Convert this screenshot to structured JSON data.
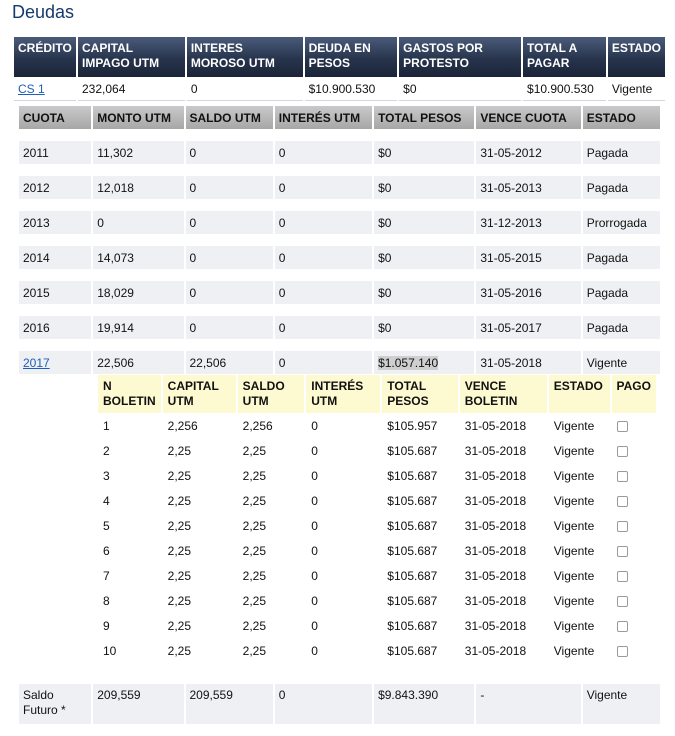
{
  "page": {
    "title": "Deudas"
  },
  "credit_table": {
    "headers": [
      "CRÉDITO",
      "CAPITAL IMPAGO UTM",
      "INTERES MOROSO UTM",
      "DEUDA EN PESOS",
      "GASTOS POR PROTESTO",
      "TOTAL A PAGAR",
      "ESTADO"
    ],
    "row": [
      "CS 1",
      "232,064",
      "0",
      "$10.900.530",
      "$0",
      "$10.900.530",
      "Vigente"
    ]
  },
  "cuotas_table": {
    "headers": [
      "CUOTA",
      "MONTO UTM",
      "SALDO UTM",
      "INTERÉS UTM",
      "TOTAL PESOS",
      "VENCE CUOTA",
      "ESTADO"
    ],
    "rows": [
      [
        "2011",
        "11,302",
        "0",
        "0",
        "$0",
        "31-05-2012",
        "Pagada"
      ],
      [
        "2012",
        "12,018",
        "0",
        "0",
        "$0",
        "31-05-2013",
        "Pagada"
      ],
      [
        "2013",
        "0",
        "0",
        "0",
        "$0",
        "31-12-2013",
        "Prorrogada"
      ],
      [
        "2014",
        "14,073",
        "0",
        "0",
        "$0",
        "31-05-2015",
        "Pagada"
      ],
      [
        "2015",
        "18,029",
        "0",
        "0",
        "$0",
        "31-05-2016",
        "Pagada"
      ],
      [
        "2016",
        "19,914",
        "0",
        "0",
        "$0",
        "31-05-2017",
        "Pagada"
      ],
      [
        "2017",
        "22,506",
        "22,506",
        "0",
        "$1.057.140",
        "31-05-2018",
        "Vigente"
      ]
    ]
  },
  "boletines_table": {
    "headers": [
      "N BOLETIN",
      "CAPITAL UTM",
      "SALDO UTM",
      "INTERÉS UTM",
      "TOTAL PESOS",
      "VENCE BOLETIN",
      "ESTADO",
      "PAGO"
    ],
    "rows": [
      [
        "1",
        "2,256",
        "2,256",
        "0",
        "$105.957",
        "31-05-2018",
        "Vigente"
      ],
      [
        "2",
        "2,25",
        "2,25",
        "0",
        "$105.687",
        "31-05-2018",
        "Vigente"
      ],
      [
        "3",
        "2,25",
        "2,25",
        "0",
        "$105.687",
        "31-05-2018",
        "Vigente"
      ],
      [
        "4",
        "2,25",
        "2,25",
        "0",
        "$105.687",
        "31-05-2018",
        "Vigente"
      ],
      [
        "5",
        "2,25",
        "2,25",
        "0",
        "$105.687",
        "31-05-2018",
        "Vigente"
      ],
      [
        "6",
        "2,25",
        "2,25",
        "0",
        "$105.687",
        "31-05-2018",
        "Vigente"
      ],
      [
        "7",
        "2,25",
        "2,25",
        "0",
        "$105.687",
        "31-05-2018",
        "Vigente"
      ],
      [
        "8",
        "2,25",
        "2,25",
        "0",
        "$105.687",
        "31-05-2018",
        "Vigente"
      ],
      [
        "9",
        "2,25",
        "2,25",
        "0",
        "$105.687",
        "31-05-2018",
        "Vigente"
      ],
      [
        "10",
        "2,25",
        "2,25",
        "0",
        "$105.687",
        "31-05-2018",
        "Vigente"
      ]
    ]
  },
  "saldo_futuro": {
    "row": [
      "Saldo Futuro *",
      "209,559",
      "209,559",
      "0",
      "$9.843.390",
      "-",
      "Vigente"
    ]
  }
}
